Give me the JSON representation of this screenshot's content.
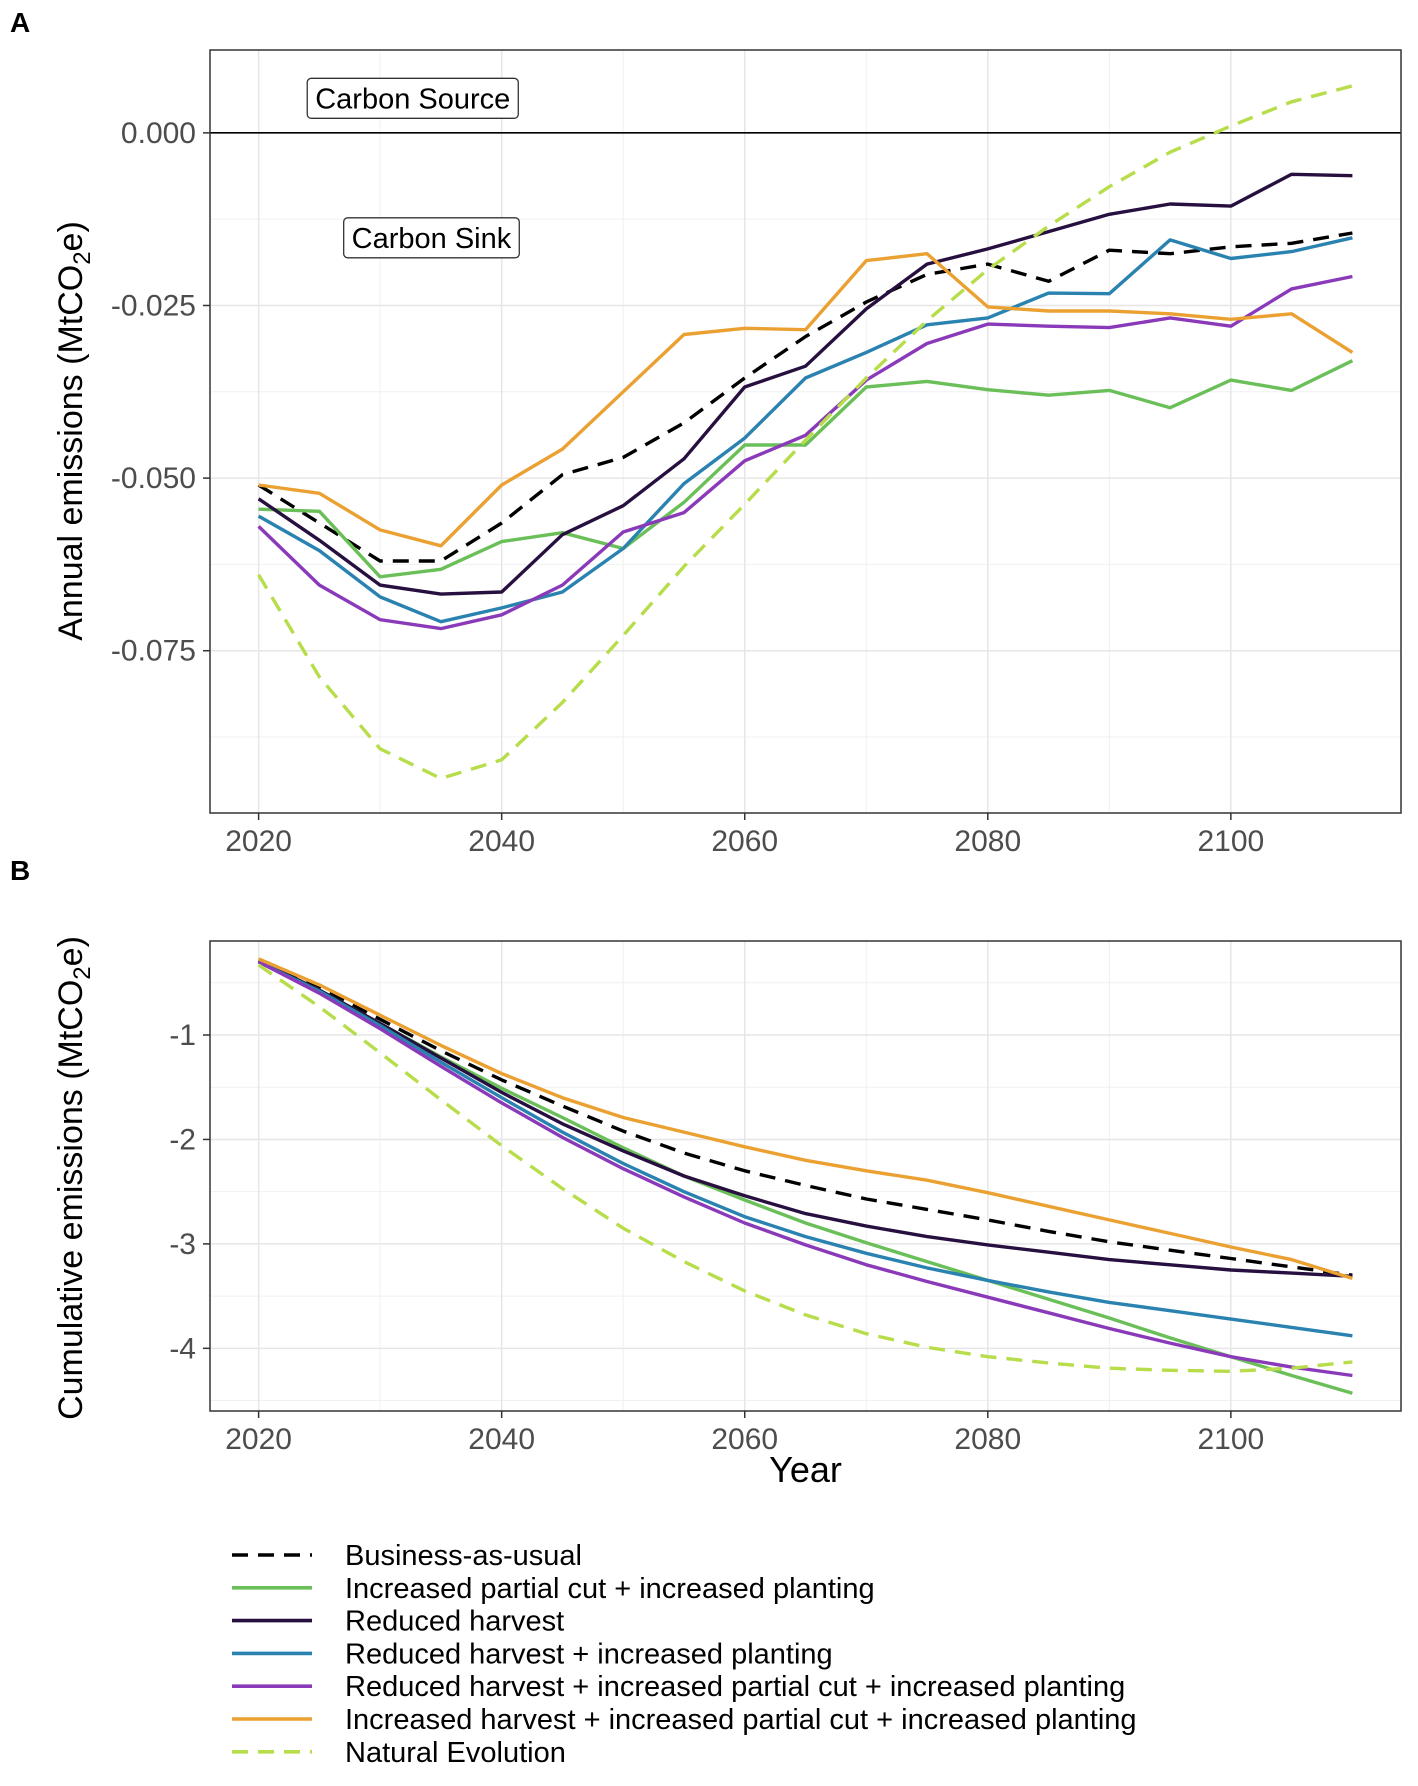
{
  "chart_data": [
    {
      "panel": "A",
      "type": "line",
      "ylabel_main": "Annual emissions (MtCO",
      "ylabel_sub": "2",
      "ylabel_tail": "e)",
      "xlabel": "",
      "xlim": [
        2016,
        2114
      ],
      "ylim": [
        -0.0985,
        0.012
      ],
      "x_ticks": [
        2020,
        2040,
        2060,
        2080,
        2100
      ],
      "y_ticks": [
        0.0,
        -0.025,
        -0.05,
        -0.075
      ],
      "y_tick_labels": [
        "0.000",
        "-0.025",
        "-0.050",
        "-0.075"
      ],
      "reference_line": 0.0,
      "annotations": [
        {
          "text": "Carbon Source",
          "x": 2024,
          "y": 0.005
        },
        {
          "text": "Carbon Sink",
          "x": 2027,
          "y": -0.0152
        }
      ],
      "x": [
        2020,
        2025,
        2030,
        2035,
        2040,
        2045,
        2050,
        2055,
        2060,
        2065,
        2070,
        2075,
        2080,
        2085,
        2090,
        2095,
        2100,
        2105,
        2110
      ],
      "series": [
        {
          "name": "Business-as-usual",
          "values": [
            -0.051,
            -0.0565,
            -0.062,
            -0.062,
            -0.0565,
            -0.0495,
            -0.047,
            -0.042,
            -0.0355,
            -0.0295,
            -0.0245,
            -0.0205,
            -0.019,
            -0.0215,
            -0.017,
            -0.0175,
            -0.0165,
            -0.016,
            -0.0145
          ]
        },
        {
          "name": "Increased partial cut + increased planting",
          "values": [
            -0.0545,
            -0.0548,
            -0.0643,
            -0.0632,
            -0.0592,
            -0.0579,
            -0.0602,
            -0.0535,
            -0.0452,
            -0.0452,
            -0.0368,
            -0.036,
            -0.0372,
            -0.038,
            -0.0373,
            -0.0398,
            -0.0358,
            -0.0373,
            -0.033
          ]
        },
        {
          "name": "Reduced harvest",
          "values": [
            -0.053,
            -0.059,
            -0.0655,
            -0.0668,
            -0.0665,
            -0.0582,
            -0.054,
            -0.0472,
            -0.0368,
            -0.0338,
            -0.0255,
            -0.019,
            -0.0168,
            -0.0143,
            -0.0118,
            -0.0103,
            -0.0106,
            -0.006,
            -0.0062
          ]
        },
        {
          "name": "Reduced harvest + increased planting",
          "values": [
            -0.0555,
            -0.0605,
            -0.0672,
            -0.0708,
            -0.0688,
            -0.0665,
            -0.0602,
            -0.0508,
            -0.0442,
            -0.0355,
            -0.0318,
            -0.0278,
            -0.0268,
            -0.0232,
            -0.0233,
            -0.0155,
            -0.0182,
            -0.0172,
            -0.0152
          ]
        },
        {
          "name": "Reduced harvest + increased partial cut + increased planting",
          "values": [
            -0.057,
            -0.0655,
            -0.0705,
            -0.0718,
            -0.0698,
            -0.0655,
            -0.0578,
            -0.055,
            -0.0475,
            -0.0438,
            -0.0358,
            -0.0305,
            -0.0277,
            -0.028,
            -0.0282,
            -0.0268,
            -0.028,
            -0.0226,
            -0.0208
          ]
        },
        {
          "name": "Increased harvest + increased partial cut + increased planting",
          "values": [
            -0.051,
            -0.0522,
            -0.0575,
            -0.0598,
            -0.051,
            -0.0458,
            -0.0375,
            -0.0292,
            -0.0283,
            -0.0285,
            -0.0185,
            -0.0175,
            -0.0252,
            -0.0258,
            -0.0258,
            -0.0262,
            -0.027,
            -0.0262,
            -0.0318
          ]
        },
        {
          "name": "Natural Evolution",
          "values": [
            -0.064,
            -0.0788,
            -0.0892,
            -0.0935,
            -0.0908,
            -0.0825,
            -0.0728,
            -0.0628,
            -0.0538,
            -0.0445,
            -0.0355,
            -0.0272,
            -0.0198,
            -0.0135,
            -0.0078,
            -0.0028,
            0.001,
            0.0045,
            0.0068
          ]
        }
      ]
    },
    {
      "panel": "B",
      "type": "line",
      "ylabel_main": "Cumulative emissions (MtCO",
      "ylabel_sub": "2",
      "ylabel_tail": "e)",
      "xlabel": "Year",
      "xlim": [
        2016,
        2114
      ],
      "ylim": [
        -4.6,
        -0.1
      ],
      "x_ticks": [
        2020,
        2040,
        2060,
        2080,
        2100
      ],
      "y_ticks": [
        -1,
        -2,
        -3,
        -4
      ],
      "y_tick_labels": [
        "-1",
        "-2",
        "-3",
        "-4"
      ],
      "x": [
        2020,
        2025,
        2030,
        2035,
        2040,
        2045,
        2050,
        2055,
        2060,
        2065,
        2070,
        2075,
        2080,
        2085,
        2090,
        2095,
        2100,
        2105,
        2110
      ],
      "series": [
        {
          "name": "Business-as-usual",
          "values": [
            -0.29,
            -0.55,
            -0.85,
            -1.15,
            -1.43,
            -1.68,
            -1.92,
            -2.13,
            -2.3,
            -2.44,
            -2.57,
            -2.67,
            -2.77,
            -2.88,
            -2.98,
            -3.06,
            -3.14,
            -3.22,
            -3.3
          ]
        },
        {
          "name": "Increased partial cut + increased planting",
          "values": [
            -0.3,
            -0.57,
            -0.89,
            -1.21,
            -1.51,
            -1.79,
            -2.08,
            -2.35,
            -2.58,
            -2.8,
            -2.99,
            -3.17,
            -3.35,
            -3.53,
            -3.71,
            -3.9,
            -4.08,
            -4.26,
            -4.43
          ]
        },
        {
          "name": "Reduced harvest",
          "values": [
            -0.29,
            -0.57,
            -0.89,
            -1.22,
            -1.55,
            -1.85,
            -2.11,
            -2.35,
            -2.54,
            -2.71,
            -2.83,
            -2.93,
            -3.01,
            -3.08,
            -3.15,
            -3.2,
            -3.25,
            -3.28,
            -3.31
          ]
        },
        {
          "name": "Reduced harvest + increased planting",
          "values": [
            -0.3,
            -0.58,
            -0.91,
            -1.26,
            -1.6,
            -1.93,
            -2.23,
            -2.5,
            -2.74,
            -2.93,
            -3.09,
            -3.23,
            -3.35,
            -3.46,
            -3.56,
            -3.64,
            -3.72,
            -3.8,
            -3.88
          ]
        },
        {
          "name": "Reduced harvest + increased partial cut + increased planting",
          "values": [
            -0.3,
            -0.6,
            -0.94,
            -1.3,
            -1.65,
            -1.98,
            -2.28,
            -2.55,
            -2.8,
            -3.01,
            -3.2,
            -3.36,
            -3.51,
            -3.66,
            -3.81,
            -3.95,
            -4.08,
            -4.18,
            -4.26
          ]
        },
        {
          "name": "Increased harvest + increased partial cut + increased planting",
          "values": [
            -0.27,
            -0.52,
            -0.81,
            -1.1,
            -1.37,
            -1.6,
            -1.79,
            -1.93,
            -2.07,
            -2.2,
            -2.3,
            -2.39,
            -2.51,
            -2.64,
            -2.77,
            -2.9,
            -3.03,
            -3.15,
            -3.33
          ]
        },
        {
          "name": "Natural Evolution",
          "values": [
            -0.33,
            -0.73,
            -1.17,
            -1.62,
            -2.06,
            -2.47,
            -2.85,
            -3.17,
            -3.45,
            -3.68,
            -3.86,
            -3.99,
            -4.08,
            -4.14,
            -4.19,
            -4.21,
            -4.22,
            -4.19,
            -4.13
          ]
        }
      ]
    }
  ],
  "panel_labels": [
    "A",
    "B"
  ],
  "legend": {
    "items": [
      {
        "label": "Business-as-usual",
        "color": "#000000",
        "dashed": true
      },
      {
        "label": "Increased partial cut + increased planting",
        "color": "#6bbf59",
        "dashed": false
      },
      {
        "label": "Reduced harvest",
        "color": "#271040",
        "dashed": false
      },
      {
        "label": "Reduced harvest + increased planting",
        "color": "#2a82b0",
        "dashed": false
      },
      {
        "label": "Reduced harvest + increased partial cut + increased planting",
        "color": "#8a3ab9",
        "dashed": false
      },
      {
        "label": "Increased harvest + increased partial cut + increased planting",
        "color": "#eba132",
        "dashed": false
      },
      {
        "label": "Natural Evolution",
        "color": "#b7dd4a",
        "dashed": true
      }
    ]
  }
}
